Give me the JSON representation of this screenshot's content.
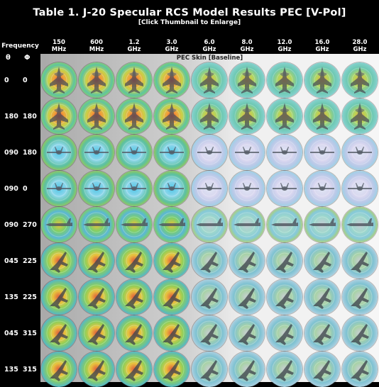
{
  "header": {
    "title": "Table 1. J-20 Specular RCS Model Results PEC [V-Pol]",
    "subtitle": "[Click Thumbnail to Enlarge]",
    "frequency_label": "Frequency",
    "theta_symbol": "θ",
    "phi_symbol": "Φ",
    "section_label": "PEC Skin [Baseline]"
  },
  "frequencies": [
    {
      "value": "150",
      "unit": "MHz"
    },
    {
      "value": "600",
      "unit": "MHz"
    },
    {
      "value": "1.2",
      "unit": "GHz"
    },
    {
      "value": "3.0",
      "unit": "GHz"
    },
    {
      "value": "6.0",
      "unit": "GHz"
    },
    {
      "value": "8.0",
      "unit": "GHz"
    },
    {
      "value": "12.0",
      "unit": "GHz"
    },
    {
      "value": "16.0",
      "unit": "GHz"
    },
    {
      "value": "28.0",
      "unit": "GHz"
    }
  ],
  "rows": [
    {
      "theta": "0",
      "phi": "0",
      "view": "top"
    },
    {
      "theta": "180",
      "phi": "180",
      "view": "bottom"
    },
    {
      "theta": "090",
      "phi": "180",
      "view": "rear"
    },
    {
      "theta": "090",
      "phi": "0",
      "view": "front"
    },
    {
      "theta": "090",
      "phi": "270",
      "view": "side"
    },
    {
      "theta": "045",
      "phi": "225",
      "view": "oblique"
    },
    {
      "theta": "135",
      "phi": "225",
      "view": "oblique"
    },
    {
      "theta": "045",
      "phi": "315",
      "view": "oblique"
    },
    {
      "theta": "135",
      "phi": "315",
      "view": "oblique"
    }
  ]
}
